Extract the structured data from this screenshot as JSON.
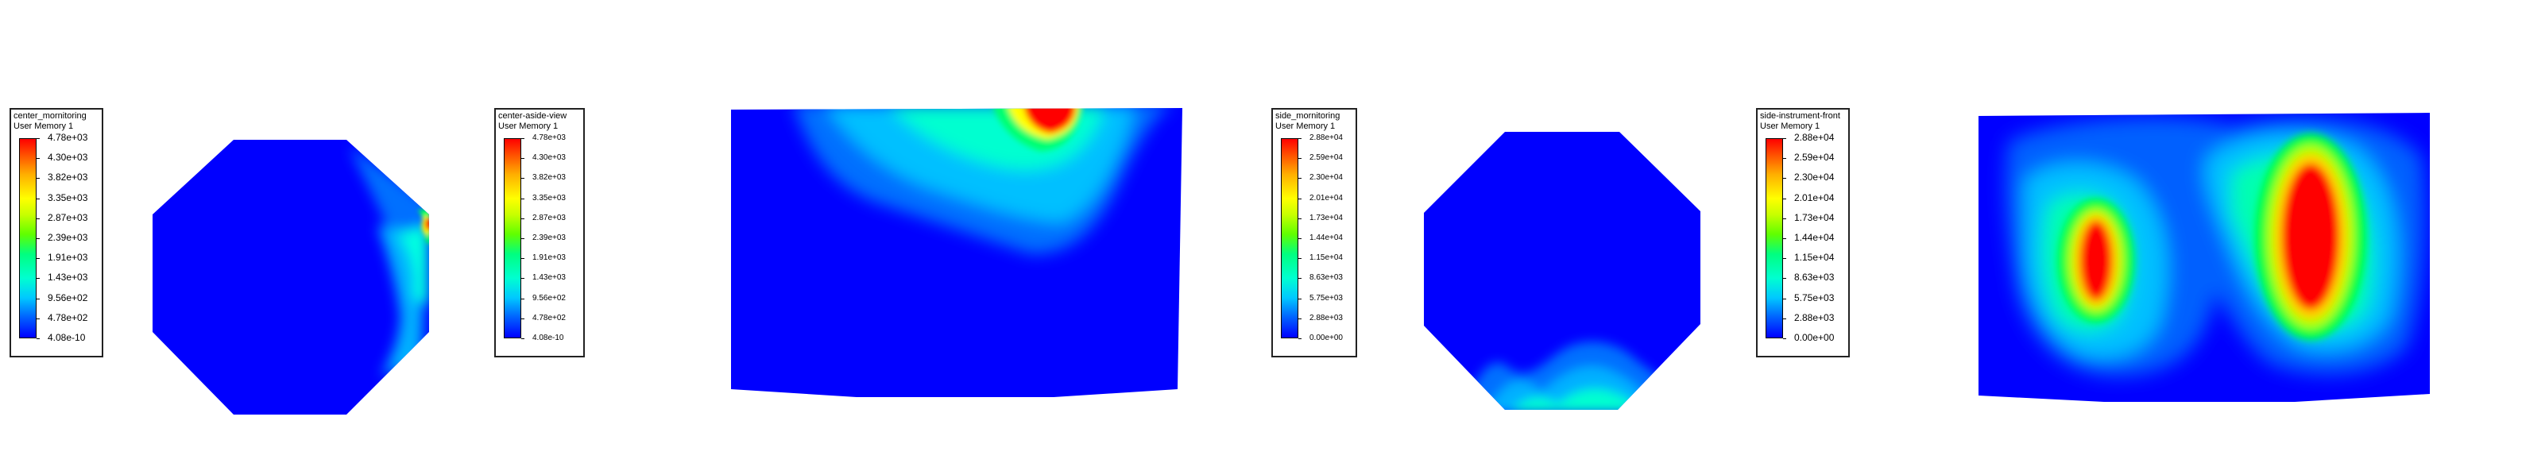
{
  "colors": {
    "background": "#ffffff",
    "field_low": "#0000ff",
    "field_high": "#ff0000"
  },
  "panels": [
    {
      "legend": {
        "title": "center_mornitoring",
        "subtitle": "User Memory 1",
        "ticks": [
          "4.78e+03",
          "4.30e+03",
          "3.82e+03",
          "3.35e+03",
          "2.87e+03",
          "2.39e+03",
          "1.91e+03",
          "1.43e+03",
          "9.56e+02",
          "4.78e+02",
          "4.08e-10"
        ]
      },
      "view": "octagon-section"
    },
    {
      "legend": {
        "title": "center-aside-view",
        "subtitle": "User Memory 1",
        "ticks": [
          "4.78e+03",
          "4.30e+03",
          "3.82e+03",
          "3.35e+03",
          "2.87e+03",
          "2.39e+03",
          "1.91e+03",
          "1.43e+03",
          "9.56e+02",
          "4.78e+02",
          "4.08e-10"
        ]
      },
      "view": "side-section"
    },
    {
      "legend": {
        "title": "side_mornitoring",
        "subtitle": "User Memory 1",
        "ticks": [
          "2.88e+04",
          "2.59e+04",
          "2.30e+04",
          "2.01e+04",
          "1.73e+04",
          "1.44e+04",
          "1.15e+04",
          "8.63e+03",
          "5.75e+03",
          "2.88e+03",
          "0.00e+00"
        ]
      },
      "view": "octagon-section"
    },
    {
      "legend": {
        "title": "side-instrument-front",
        "subtitle": "User Memory 1",
        "ticks": [
          "2.88e+04",
          "2.59e+04",
          "2.30e+04",
          "2.01e+04",
          "1.73e+04",
          "1.44e+04",
          "1.15e+04",
          "8.63e+03",
          "5.75e+03",
          "2.88e+03",
          "0.00e+00"
        ]
      },
      "view": "front-section"
    }
  ]
}
